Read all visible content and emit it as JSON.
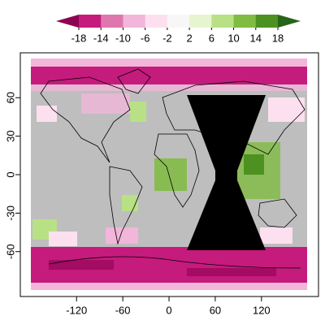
{
  "chart_data": {
    "type": "raster-map",
    "colorbar": {
      "ticks": [
        -18,
        -14,
        -10,
        -6,
        -2,
        2,
        6,
        10,
        14,
        18
      ],
      "colors": [
        "#8e0152",
        "#c51b7d",
        "#de77ae",
        "#f1b6da",
        "#fde0ef",
        "#f7f7f7",
        "#e6f5d0",
        "#b8e186",
        "#7fbc41",
        "#4d9221",
        "#276419"
      ]
    },
    "xlim": [
      -193,
      194
    ],
    "xticks": [
      -120,
      -60,
      0,
      60,
      120
    ],
    "ylim": [
      -95,
      95
    ],
    "yticks": [
      -60,
      -30,
      0,
      30,
      60
    ]
  }
}
